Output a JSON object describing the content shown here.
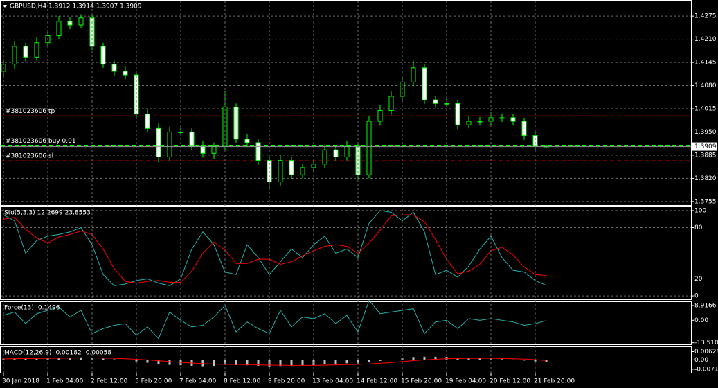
{
  "chart_data": [
    {
      "type": "candlestick",
      "title": "GBPUSD,H4  1.3912 1.3914 1.3907 1.3909",
      "open": [
        1.412,
        1.414,
        1.419,
        1.416,
        1.42,
        1.422,
        1.426,
        1.425,
        1.427,
        1.419,
        1.414,
        1.412,
        1.411,
        1.4,
        1.396,
        1.388,
        1.395,
        1.395,
        1.391,
        1.389,
        1.391,
        1.402,
        1.393,
        1.392,
        1.387,
        1.381,
        1.387,
        1.383,
        1.385,
        1.386,
        1.39,
        1.388,
        1.391,
        1.383,
        1.398,
        1.401,
        1.405,
        1.409,
        1.413,
        1.404,
        1.403,
        1.403,
        1.397,
        1.398,
        1.398,
        1.399,
        1.399,
        1.398,
        1.394,
        1.391
      ],
      "high": [
        1.4155,
        1.4205,
        1.42,
        1.4215,
        1.4235,
        1.4275,
        1.4272,
        1.428,
        1.4278,
        1.42,
        1.415,
        1.4135,
        1.412,
        1.4015,
        1.3975,
        1.3965,
        1.3962,
        1.396,
        1.3925,
        1.392,
        1.4065,
        1.403,
        1.3945,
        1.393,
        1.388,
        1.3885,
        1.388,
        1.3862,
        1.3872,
        1.3915,
        1.3912,
        1.3925,
        1.392,
        1.3995,
        1.4025,
        1.4065,
        1.4105,
        1.415,
        1.414,
        1.4052,
        1.4045,
        1.404,
        1.3995,
        1.3992,
        1.4005,
        1.4002,
        1.4,
        1.399,
        1.3955,
        1.3914
      ],
      "low": [
        1.4105,
        1.4128,
        1.4148,
        1.415,
        1.4188,
        1.421,
        1.4238,
        1.424,
        1.418,
        1.413,
        1.4108,
        1.4098,
        1.399,
        1.3948,
        1.3865,
        1.387,
        1.3938,
        1.3898,
        1.3878,
        1.3875,
        1.39,
        1.3918,
        1.3908,
        1.3858,
        1.379,
        1.3798,
        1.3818,
        1.382,
        1.3838,
        1.3848,
        1.3868,
        1.387,
        1.3815,
        1.382,
        1.3968,
        1.3998,
        1.4038,
        1.4078,
        1.4028,
        1.4018,
        1.402,
        1.3958,
        1.396,
        1.3968,
        1.397,
        1.3978,
        1.3968,
        1.3928,
        1.3898,
        1.3907
      ],
      "close": [
        1.414,
        1.419,
        1.416,
        1.42,
        1.422,
        1.426,
        1.425,
        1.427,
        1.419,
        1.414,
        1.412,
        1.411,
        1.4,
        1.396,
        1.388,
        1.395,
        1.395,
        1.391,
        1.389,
        1.391,
        1.402,
        1.393,
        1.392,
        1.387,
        1.381,
        1.387,
        1.383,
        1.385,
        1.386,
        1.39,
        1.388,
        1.391,
        1.383,
        1.398,
        1.401,
        1.405,
        1.409,
        1.413,
        1.404,
        1.403,
        1.403,
        1.397,
        1.398,
        1.398,
        1.399,
        1.399,
        1.398,
        1.394,
        1.391,
        1.3909
      ],
      "up_color": "#000000",
      "down_color": "#ffffff",
      "wick_color": "#00ff00",
      "ylim": [
        1.3745,
        1.4318
      ],
      "yticks": [
        1.4275,
        {
          "value": 1.421,
          "label": "1.4210"
        },
        1.4145,
        {
          "value": 1.408,
          "label": "1.4080"
        },
        1.4015,
        {
          "value": 1.395,
          "label": "1.3950"
        },
        1.3885,
        {
          "value": 1.382,
          "label": "1.3820"
        },
        1.3755
      ],
      "grid": true,
      "levels": [
        {
          "label": "#381023606 tp",
          "value": 1.3995,
          "color": "#ff0000"
        },
        {
          "label": "#381023606 buy 0.01",
          "value": 1.3911,
          "color": "#00ff00"
        },
        {
          "label": "#381023606 sl",
          "value": 1.3869,
          "color": "#ff0000"
        }
      ],
      "current_price": 1.3909
    },
    {
      "type": "line",
      "title": "Sto(5,3,3) 12.2699 23.8553",
      "ylim": [
        -4,
        104
      ],
      "yticks": [
        0,
        20,
        80,
        100
      ],
      "grid": true,
      "series": [
        {
          "color": "#20b2aa",
          "values": [
            95,
            88,
            50,
            65,
            70,
            72,
            75,
            80,
            60,
            25,
            12,
            14,
            18,
            20,
            15,
            12,
            20,
            55,
            75,
            60,
            28,
            25,
            60,
            45,
            25,
            40,
            55,
            45,
            60,
            70,
            50,
            55,
            45,
            85,
            100,
            98,
            88,
            98,
            75,
            25,
            30,
            22,
            35,
            55,
            70,
            45,
            30,
            28,
            18,
            12.2699
          ]
        },
        {
          "color": "#ff0000",
          "values": [
            90,
            92,
            78,
            68,
            62,
            69,
            72,
            76,
            72,
            55,
            32,
            17,
            15,
            17,
            18,
            16,
            16,
            29,
            50,
            63,
            54,
            38,
            38,
            43,
            43,
            37,
            40,
            47,
            53,
            58,
            60,
            58,
            50,
            62,
            77,
            94,
            95,
            95,
            87,
            66,
            43,
            26,
            29,
            37,
            53,
            57,
            48,
            34,
            25,
            23.8553
          ]
        }
      ]
    },
    {
      "type": "line",
      "title": "Force(13) -0.1496",
      "ylim": [
        -14.5,
        11
      ],
      "yticks": [
        8.9166,
        {
          "value": 0,
          "label": "0.00"
        },
        -13.5105
      ],
      "grid": false,
      "series": [
        {
          "color": "#20b2aa",
          "values": [
            3,
            5,
            -2,
            4,
            6,
            8,
            2,
            6,
            -8,
            -5,
            -3,
            -2,
            -9,
            -4,
            -11,
            5,
            0,
            -4,
            -3,
            2,
            9,
            -7,
            -1,
            -5,
            -8,
            6,
            -4,
            2,
            1,
            4,
            -2,
            3,
            -7,
            12,
            4,
            5,
            6,
            7,
            -8,
            -1,
            0,
            -5,
            1,
            0,
            1,
            0,
            -1,
            -3,
            -2,
            -0.1496
          ]
        }
      ]
    },
    {
      "type": "bar",
      "title": "MACD(12,26,9) -0.00182 -0.00058",
      "ylim": [
        -0.0098,
        0.0097
      ],
      "yticks": [
        0.00628,
        {
          "value": 0,
          "label": "0.00"
        },
        -0.00711
      ],
      "grid": false,
      "categories": [
        "30 Jan 2018",
        null,
        null,
        null,
        "1 Feb 04:00",
        null,
        null,
        null,
        "2 Feb 12:00",
        null,
        null,
        null,
        "5 Feb 20:00",
        null,
        null,
        null,
        "7 Feb 04:00",
        null,
        null,
        null,
        "8 Feb 12:00",
        null,
        null,
        null,
        "9 Feb 20:00",
        null,
        null,
        null,
        "13 Feb 04:00",
        null,
        null,
        null,
        "14 Feb 12:00",
        null,
        null,
        null,
        "15 Feb 20:00",
        null,
        null,
        null,
        "19 Feb 04:00",
        null,
        null,
        null,
        "20 Feb 12:00",
        null,
        null,
        null,
        "21 Feb 20:00",
        null
      ],
      "series": [
        {
          "type": "bar",
          "color": "#c0c0c0",
          "values": [
            0.001,
            0.0012,
            0.0012,
            0.0014,
            0.0016,
            0.0018,
            0.0018,
            0.0019,
            0.0016,
            0.001,
            0.0005,
            -0.0001,
            -0.0012,
            -0.0022,
            -0.0035,
            -0.0038,
            -0.0041,
            -0.0045,
            -0.0048,
            -0.0046,
            -0.0038,
            -0.004,
            -0.0041,
            -0.0045,
            -0.005,
            -0.0047,
            -0.0046,
            -0.0043,
            -0.004,
            -0.0034,
            -0.003,
            -0.0026,
            -0.0028,
            -0.0018,
            -0.0008,
            0.0002,
            0.0012,
            0.0022,
            0.0024,
            0.0024,
            0.0023,
            0.0018,
            0.0015,
            0.0012,
            0.0009,
            0.0006,
            0.0003,
            -0.0005,
            -0.0012,
            -0.00182
          ]
        },
        {
          "type": "line",
          "color": "#ff0000",
          "values": [
            0.0008,
            0.0009,
            0.001,
            0.0011,
            0.0012,
            0.0013,
            0.0014,
            0.0015,
            0.0015,
            0.0014,
            0.0012,
            0.0009,
            0.0005,
            0.0,
            -0.0007,
            -0.0013,
            -0.0019,
            -0.0024,
            -0.0029,
            -0.0032,
            -0.0034,
            -0.0035,
            -0.0036,
            -0.0038,
            -0.004,
            -0.0041,
            -0.0042,
            -0.0042,
            -0.0042,
            -0.004,
            -0.0038,
            -0.0036,
            -0.0034,
            -0.0031,
            -0.0026,
            -0.002,
            -0.0013,
            -0.0006,
            0.0,
            0.0005,
            0.0009,
            0.0011,
            0.0012,
            0.0012,
            0.0012,
            0.0011,
            0.0009,
            0.0006,
            0.0002,
            -0.00058
          ]
        }
      ]
    }
  ]
}
